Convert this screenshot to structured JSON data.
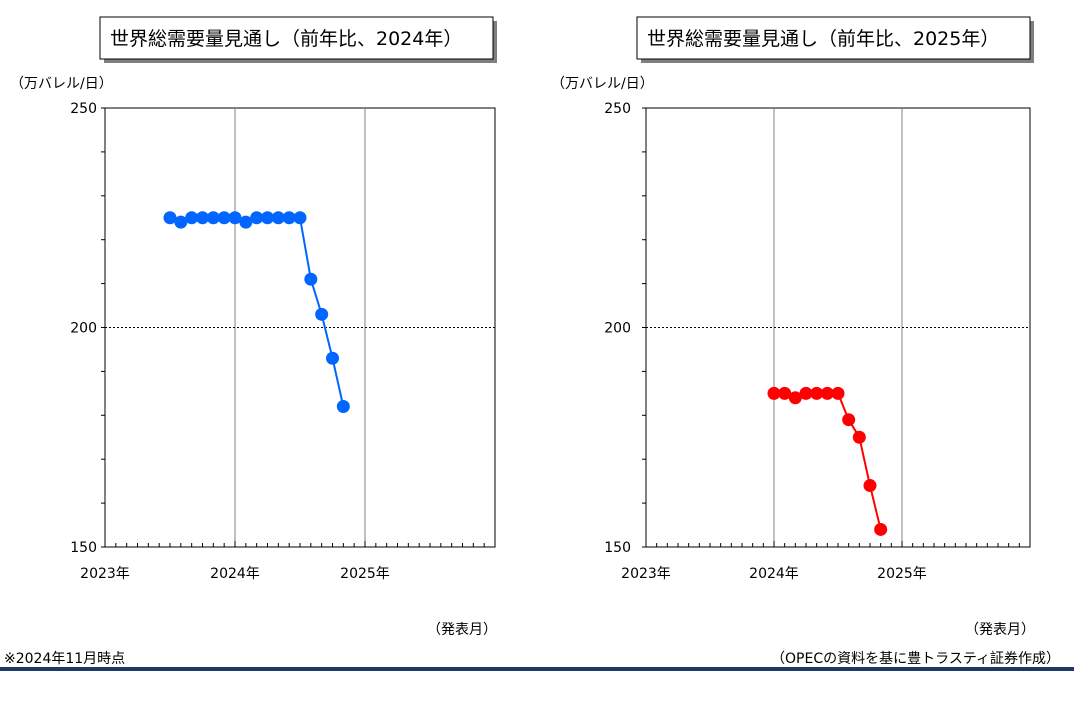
{
  "chart_data": [
    {
      "type": "line",
      "title": "世界総需要量見通し（前年比、2024年）",
      "ylabel": "（万バレル/日）",
      "xlabel": "（発表月）",
      "ylim": [
        150,
        250
      ],
      "yticks": [
        150,
        200,
        250
      ],
      "xlim": [
        "2023-01",
        "2026-01"
      ],
      "xticks": [
        {
          "x": "2023-01",
          "label": "2023年"
        },
        {
          "x": "2024-01",
          "label": "2024年"
        },
        {
          "x": "2025-01",
          "label": "2025年"
        }
      ],
      "reference_line": 200,
      "grid": "vertical",
      "series": [
        {
          "color": "#0066ff",
          "x": [
            "2023-07",
            "2023-08",
            "2023-09",
            "2023-10",
            "2023-11",
            "2023-12",
            "2024-01",
            "2024-02",
            "2024-03",
            "2024-04",
            "2024-05",
            "2024-06",
            "2024-07",
            "2024-08",
            "2024-09",
            "2024-10",
            "2024-11"
          ],
          "values": [
            225,
            224,
            225,
            225,
            225,
            225,
            225,
            224,
            225,
            225,
            225,
            225,
            225,
            211,
            203,
            193,
            182
          ]
        }
      ]
    },
    {
      "type": "line",
      "title": "世界総需要量見通し（前年比、2025年）",
      "ylabel": "（万バレル/日）",
      "xlabel": "（発表月）",
      "ylim": [
        150,
        250
      ],
      "yticks": [
        150,
        200,
        250
      ],
      "xlim": [
        "2023-01",
        "2026-01"
      ],
      "xticks": [
        {
          "x": "2023-01",
          "label": "2023年"
        },
        {
          "x": "2024-01",
          "label": "2024年"
        },
        {
          "x": "2025-01",
          "label": "2025年"
        }
      ],
      "reference_line": 200,
      "grid": "vertical",
      "series": [
        {
          "color": "#ff0000",
          "x": [
            "2024-01",
            "2024-02",
            "2024-03",
            "2024-04",
            "2024-05",
            "2024-06",
            "2024-07",
            "2024-08",
            "2024-09",
            "2024-10",
            "2024-11"
          ],
          "values": [
            185,
            185,
            184,
            185,
            185,
            185,
            185,
            179,
            175,
            164,
            154
          ]
        }
      ]
    }
  ],
  "notes": {
    "as_of": "※2024年11月時点",
    "source": "（OPECの資料を基に豊トラスティ証券作成）"
  }
}
